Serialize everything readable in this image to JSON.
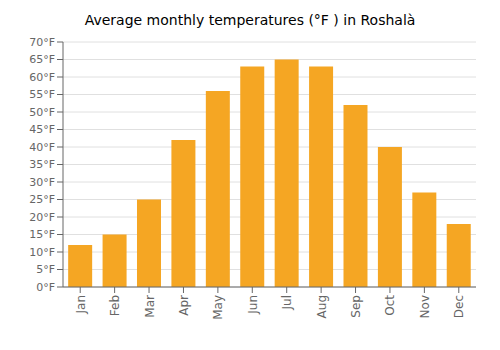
{
  "chart_data": {
    "type": "bar",
    "title": "Average monthly temperatures (°F ) in Roshalà",
    "categories": [
      "Jan",
      "Feb",
      "Mar",
      "Apr",
      "May",
      "Jun",
      "Jul",
      "Aug",
      "Sep",
      "Oct",
      "Nov",
      "Dec"
    ],
    "values": [
      12,
      15,
      25,
      42,
      56,
      63,
      65,
      63,
      52,
      40,
      27,
      18
    ],
    "color": "#F5A623",
    "ylim": [
      0,
      70
    ],
    "yticks": [
      {
        "value": 0,
        "label": "0°F"
      },
      {
        "value": 5,
        "label": "5°F"
      },
      {
        "value": 10,
        "label": "10°F"
      },
      {
        "value": 15,
        "label": "15°F"
      },
      {
        "value": 20,
        "label": "20°F"
      },
      {
        "value": 25,
        "label": "25°F"
      },
      {
        "value": 30,
        "label": "30°F"
      },
      {
        "value": 35,
        "label": "35°F"
      },
      {
        "value": 40,
        "label": "40°F"
      },
      {
        "value": 45,
        "label": "45°F"
      },
      {
        "value": 50,
        "label": "50°F"
      },
      {
        "value": 55,
        "label": "55°F"
      },
      {
        "value": 60,
        "label": "60°F"
      },
      {
        "value": 65,
        "label": "65°F"
      },
      {
        "value": 70,
        "label": "70°F"
      }
    ],
    "grid": true
  }
}
